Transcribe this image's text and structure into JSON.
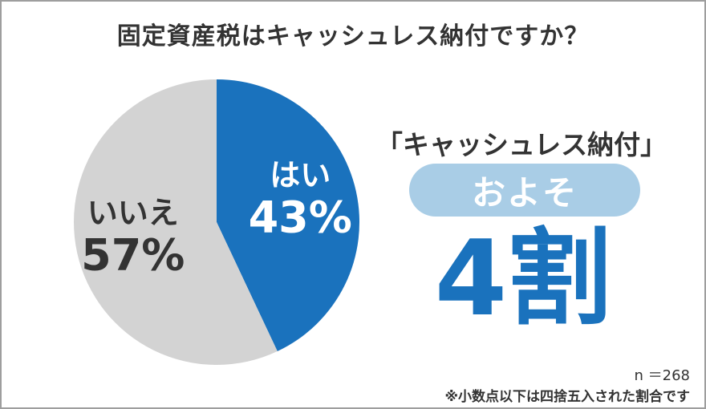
{
  "chart_data": {
    "type": "pie",
    "title": "固定資産税はキャッシュレス納付ですか？",
    "slices": [
      {
        "label": "はい",
        "value": 43,
        "value_label": "43%",
        "color": "#1a72bd",
        "text_color": "#ffffff"
      },
      {
        "label": "いいえ",
        "value": 57,
        "value_label": "57%",
        "color": "#d3d3d3",
        "text_color": "#333333"
      }
    ],
    "start_angle_deg": 0,
    "direction": "clockwise"
  },
  "callout": {
    "heading": "「キャッシュレス納付」",
    "pill_text": "およそ",
    "big_text": "4割"
  },
  "footer": {
    "sample_size": "n ＝268",
    "note": "※小数点以下は四捨五入された割合です"
  }
}
